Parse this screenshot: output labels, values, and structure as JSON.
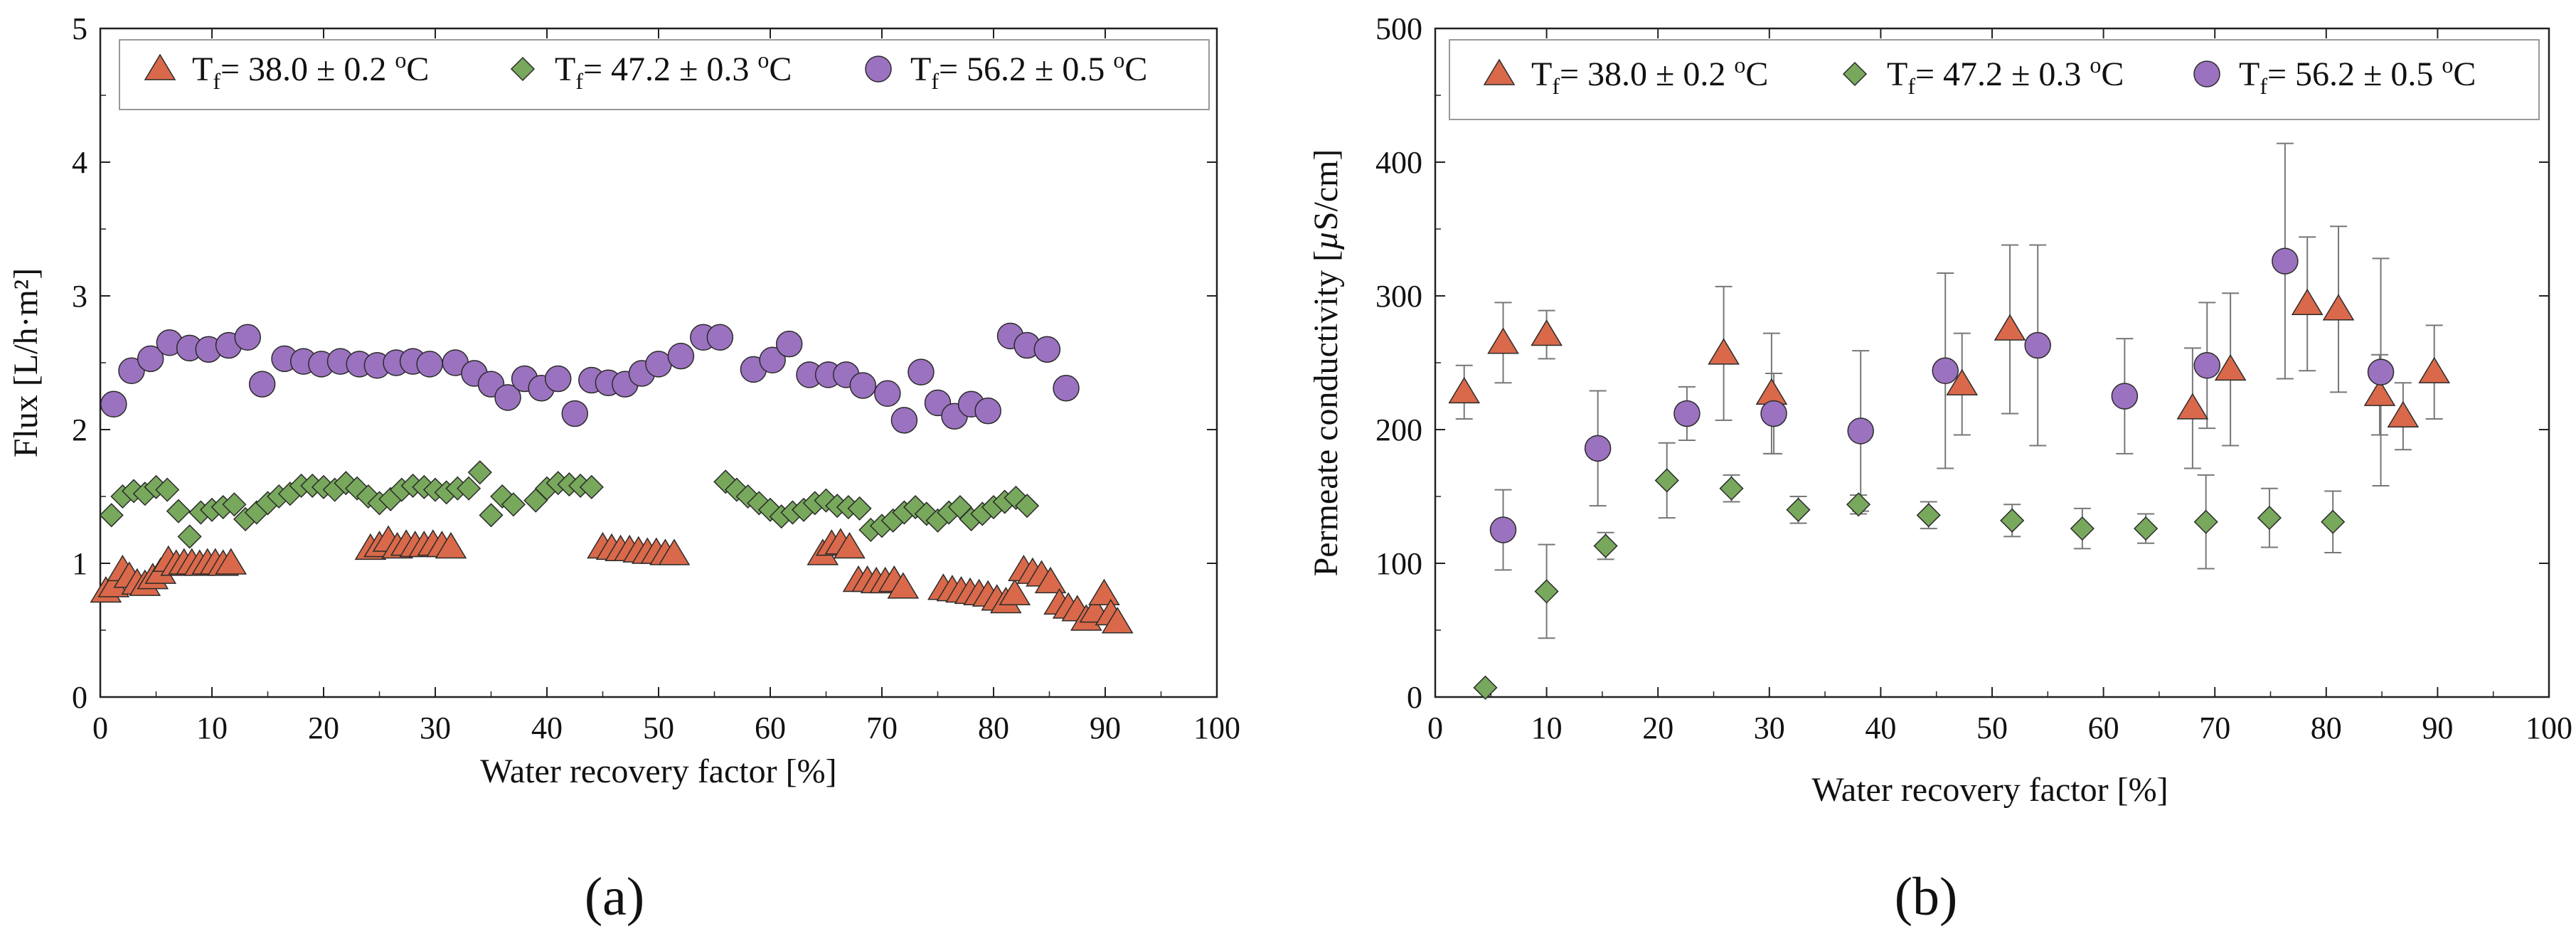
{
  "chart_data": [
    {
      "type": "scatter",
      "panel_label": "(a)",
      "xlabel": "Water recovery factor [%]",
      "ylabel": "Flux [L/h·m²]",
      "xlim": [
        0,
        100
      ],
      "ylim": [
        0,
        5
      ],
      "xticks": [
        0,
        10,
        20,
        30,
        40,
        50,
        60,
        70,
        80,
        90,
        100
      ],
      "yticks": [
        0,
        1,
        2,
        3,
        4,
        5
      ],
      "grid": false,
      "legend_position": "top",
      "series": [
        {
          "name": "Tf= 38.0 ± 0.2 ºC",
          "legend_main": "T",
          "legend_sub": "f",
          "legend_rest": "= 38.0 ± 0.2 ",
          "legend_sup": "o",
          "legend_unit": "C",
          "marker": "triangle",
          "color": "#d9694a",
          "points": [
            [
              0.5,
              0.79
            ],
            [
              1.2,
              0.83
            ],
            [
              2,
              0.95
            ],
            [
              2.6,
              0.9
            ],
            [
              3.3,
              0.85
            ],
            [
              4,
              0.84
            ],
            [
              4.7,
              0.89
            ],
            [
              5.4,
              0.93
            ],
            [
              6.1,
              1.02
            ],
            [
              6.8,
              0.99
            ],
            [
              7.5,
              1.0
            ],
            [
              8.2,
              1.0
            ],
            [
              8.9,
              0.99
            ],
            [
              9.6,
              1.0
            ],
            [
              10.3,
              1.0
            ],
            [
              11,
              0.99
            ],
            [
              11.7,
              1.0
            ],
            [
              24.2,
              1.11
            ],
            [
              25,
              1.13
            ],
            [
              25.8,
              1.17
            ],
            [
              26.6,
              1.12
            ],
            [
              27.4,
              1.14
            ],
            [
              28.2,
              1.13
            ],
            [
              29,
              1.13
            ],
            [
              29.8,
              1.14
            ],
            [
              30.6,
              1.13
            ],
            [
              31.4,
              1.12
            ],
            [
              45,
              1.12
            ],
            [
              45.8,
              1.11
            ],
            [
              46.6,
              1.1
            ],
            [
              47.4,
              1.1
            ],
            [
              48.2,
              1.09
            ],
            [
              49,
              1.08
            ],
            [
              49.8,
              1.08
            ],
            [
              50.6,
              1.07
            ],
            [
              51.4,
              1.07
            ],
            [
              64.7,
              1.07
            ],
            [
              65.5,
              1.14
            ],
            [
              66.3,
              1.15
            ],
            [
              67.1,
              1.12
            ],
            [
              67.9,
              0.87
            ],
            [
              68.7,
              0.87
            ],
            [
              69.5,
              0.86
            ],
            [
              70.3,
              0.86
            ],
            [
              71.1,
              0.87
            ],
            [
              71.9,
              0.82
            ],
            [
              75.5,
              0.81
            ],
            [
              76.3,
              0.8
            ],
            [
              77.1,
              0.79
            ],
            [
              77.9,
              0.78
            ],
            [
              78.7,
              0.77
            ],
            [
              79.5,
              0.76
            ],
            [
              80.3,
              0.73
            ],
            [
              81.1,
              0.71
            ],
            [
              81.9,
              0.77
            ],
            [
              82.7,
              0.95
            ],
            [
              83.5,
              0.93
            ],
            [
              84.3,
              0.91
            ],
            [
              85.1,
              0.86
            ],
            [
              85.9,
              0.7
            ],
            [
              86.7,
              0.67
            ],
            [
              87.5,
              0.65
            ],
            [
              88.3,
              0.58
            ],
            [
              89.1,
              0.64
            ],
            [
              89.9,
              0.77
            ],
            [
              90.5,
              0.62
            ],
            [
              91.1,
              0.56
            ]
          ]
        },
        {
          "name": "Tf= 47.2 ± 0.3 ºC",
          "legend_main": "T",
          "legend_sub": "f",
          "legend_rest": "= 47.2 ± 0.3 ",
          "legend_sup": "o",
          "legend_unit": "C",
          "marker": "diamond",
          "color": "#78a85c",
          "points": [
            [
              1,
              1.36
            ],
            [
              2,
              1.5
            ],
            [
              3,
              1.54
            ],
            [
              4,
              1.52
            ],
            [
              5,
              1.57
            ],
            [
              6,
              1.55
            ],
            [
              7,
              1.39
            ],
            [
              8,
              1.2
            ],
            [
              9,
              1.38
            ],
            [
              10,
              1.4
            ],
            [
              11,
              1.42
            ],
            [
              12,
              1.44
            ],
            [
              13,
              1.33
            ],
            [
              14,
              1.38
            ],
            [
              15,
              1.45
            ],
            [
              16,
              1.5
            ],
            [
              17,
              1.52
            ],
            [
              18,
              1.58
            ],
            [
              19,
              1.58
            ],
            [
              20,
              1.57
            ],
            [
              21,
              1.55
            ],
            [
              22,
              1.6
            ],
            [
              23,
              1.56
            ],
            [
              24,
              1.5
            ],
            [
              25,
              1.45
            ],
            [
              26,
              1.48
            ],
            [
              27,
              1.55
            ],
            [
              28,
              1.58
            ],
            [
              29,
              1.57
            ],
            [
              30,
              1.55
            ],
            [
              31,
              1.53
            ],
            [
              32,
              1.56
            ],
            [
              33,
              1.56
            ],
            [
              34,
              1.68
            ],
            [
              35,
              1.36
            ],
            [
              36,
              1.5
            ],
            [
              37,
              1.44
            ],
            [
              39,
              1.47
            ],
            [
              40,
              1.56
            ],
            [
              41,
              1.6
            ],
            [
              42,
              1.59
            ],
            [
              43,
              1.58
            ],
            [
              44,
              1.57
            ],
            [
              56,
              1.61
            ],
            [
              57,
              1.55
            ],
            [
              58,
              1.5
            ],
            [
              59,
              1.45
            ],
            [
              60,
              1.4
            ],
            [
              61,
              1.35
            ],
            [
              62,
              1.38
            ],
            [
              63,
              1.4
            ],
            [
              64,
              1.45
            ],
            [
              65,
              1.47
            ],
            [
              66,
              1.43
            ],
            [
              67,
              1.42
            ],
            [
              68,
              1.41
            ],
            [
              69,
              1.25
            ],
            [
              70,
              1.28
            ],
            [
              71,
              1.32
            ],
            [
              72,
              1.38
            ],
            [
              73,
              1.42
            ],
            [
              74,
              1.37
            ],
            [
              75,
              1.32
            ],
            [
              76,
              1.38
            ],
            [
              77,
              1.42
            ],
            [
              78,
              1.33
            ],
            [
              79,
              1.37
            ],
            [
              80,
              1.42
            ],
            [
              81,
              1.46
            ],
            [
              82,
              1.49
            ],
            [
              83,
              1.43
            ]
          ]
        },
        {
          "name": "Tf= 56.2 ± 0.5 ºC",
          "legend_main": "T",
          "legend_sub": "f",
          "legend_rest": "= 56.2 ± 0.5 ",
          "legend_sup": "o",
          "legend_unit": "C",
          "marker": "circle",
          "color": "#9b72bf",
          "points": [
            [
              1.2,
              2.19
            ],
            [
              2.8,
              2.44
            ],
            [
              4.5,
              2.53
            ],
            [
              6.2,
              2.65
            ],
            [
              8,
              2.61
            ],
            [
              9.7,
              2.6
            ],
            [
              11.5,
              2.63
            ],
            [
              13.2,
              2.69
            ],
            [
              14.5,
              2.34
            ],
            [
              16.5,
              2.53
            ],
            [
              18.2,
              2.51
            ],
            [
              19.8,
              2.49
            ],
            [
              21.5,
              2.51
            ],
            [
              23.2,
              2.49
            ],
            [
              24.8,
              2.48
            ],
            [
              26.5,
              2.5
            ],
            [
              28,
              2.51
            ],
            [
              29.5,
              2.49
            ],
            [
              31.8,
              2.5
            ],
            [
              33.5,
              2.42
            ],
            [
              35,
              2.34
            ],
            [
              36.5,
              2.24
            ],
            [
              38,
              2.38
            ],
            [
              39.5,
              2.31
            ],
            [
              41,
              2.38
            ],
            [
              42.5,
              2.12
            ],
            [
              44,
              2.37
            ],
            [
              45.5,
              2.35
            ],
            [
              47,
              2.34
            ],
            [
              48.5,
              2.42
            ],
            [
              50,
              2.49
            ],
            [
              52,
              2.55
            ],
            [
              54,
              2.69
            ],
            [
              55.5,
              2.69
            ],
            [
              58.5,
              2.45
            ],
            [
              60.2,
              2.52
            ],
            [
              61.7,
              2.64
            ],
            [
              63.5,
              2.41
            ],
            [
              65.2,
              2.41
            ],
            [
              66.8,
              2.41
            ],
            [
              68.3,
              2.33
            ],
            [
              70.5,
              2.27
            ],
            [
              72,
              2.07
            ],
            [
              73.5,
              2.43
            ],
            [
              75,
              2.2
            ],
            [
              76.5,
              2.1
            ],
            [
              78,
              2.19
            ],
            [
              79.5,
              2.14
            ],
            [
              81.5,
              2.7
            ],
            [
              83,
              2.63
            ],
            [
              84.8,
              2.6
            ],
            [
              86.5,
              2.31
            ]
          ]
        }
      ]
    },
    {
      "type": "scatter",
      "panel_label": "(b)",
      "xlabel": "Water recovery factor [%]",
      "ylabel_pre": "Permeate conductivity [",
      "ylabel_mu": "µ",
      "ylabel_post": "S/cm]",
      "xlim": [
        0,
        100
      ],
      "ylim": [
        0,
        500
      ],
      "xticks": [
        0,
        10,
        20,
        30,
        40,
        50,
        60,
        70,
        80,
        90,
        100
      ],
      "yticks": [
        0,
        100,
        200,
        300,
        400,
        500
      ],
      "grid": false,
      "legend_position": "top",
      "series": [
        {
          "name": "Tf= 38.0 ± 0.2 ºC",
          "legend_main": "T",
          "legend_sub": "f",
          "legend_rest": "= 38.0 ± 0.2 ",
          "legend_sup": "o",
          "legend_unit": "C",
          "marker": "triangle",
          "color": "#d9694a",
          "points": [
            [
              2.6,
              228,
              20
            ],
            [
              6.1,
              265,
              30
            ],
            [
              10,
              271,
              18
            ],
            [
              25.9,
              257,
              50
            ],
            [
              30.2,
              227,
              45
            ],
            [
              47.3,
              234,
              38
            ],
            [
              51.6,
              275,
              63
            ],
            [
              68,
              216,
              45
            ],
            [
              71.4,
              245,
              57
            ],
            [
              78.3,
              294,
              50
            ],
            [
              81.1,
              290,
              62
            ],
            [
              84.8,
              226,
              30
            ],
            [
              86.9,
              210,
              25
            ],
            [
              89.7,
              243,
              35
            ]
          ]
        },
        {
          "name": "Tf= 47.2 ± 0.3 ºC",
          "legend_main": "T",
          "legend_sub": "f",
          "legend_rest": "= 47.2 ± 0.3 ",
          "legend_sup": "o",
          "legend_unit": "C",
          "marker": "diamond",
          "color": "#78a85c",
          "points": [
            [
              4.5,
              7,
              0
            ],
            [
              10,
              79,
              35
            ],
            [
              15.3,
              113,
              10
            ],
            [
              20.8,
              162,
              28
            ],
            [
              26.6,
              156,
              10
            ],
            [
              32.6,
              140,
              10
            ],
            [
              38,
              144,
              7
            ],
            [
              44.3,
              136,
              10
            ],
            [
              51.8,
              132,
              12
            ],
            [
              58.1,
              126,
              15
            ],
            [
              63.8,
              126,
              11
            ],
            [
              69.2,
              131,
              35
            ],
            [
              74.9,
              134,
              22
            ],
            [
              80.6,
              131,
              23
            ]
          ]
        },
        {
          "name": "Tf= 56.2 ± 0.5 ºC",
          "legend_main": "T",
          "legend_sub": "f",
          "legend_rest": "= 56.2 ± 0.5 ",
          "legend_sup": "o",
          "legend_unit": "C",
          "marker": "circle",
          "color": "#9b72bf",
          "points": [
            [
              6.1,
              125,
              30
            ],
            [
              14.6,
              186,
              43
            ],
            [
              22.6,
              212,
              20
            ],
            [
              30.4,
              212,
              30
            ],
            [
              38.2,
              199,
              60
            ],
            [
              45.8,
              244,
              73
            ],
            [
              54.1,
              263,
              75
            ],
            [
              61.9,
              225,
              43
            ],
            [
              69.3,
              248,
              47
            ],
            [
              76.3,
              326,
              88
            ],
            [
              84.9,
              243,
              85
            ]
          ]
        }
      ]
    }
  ]
}
